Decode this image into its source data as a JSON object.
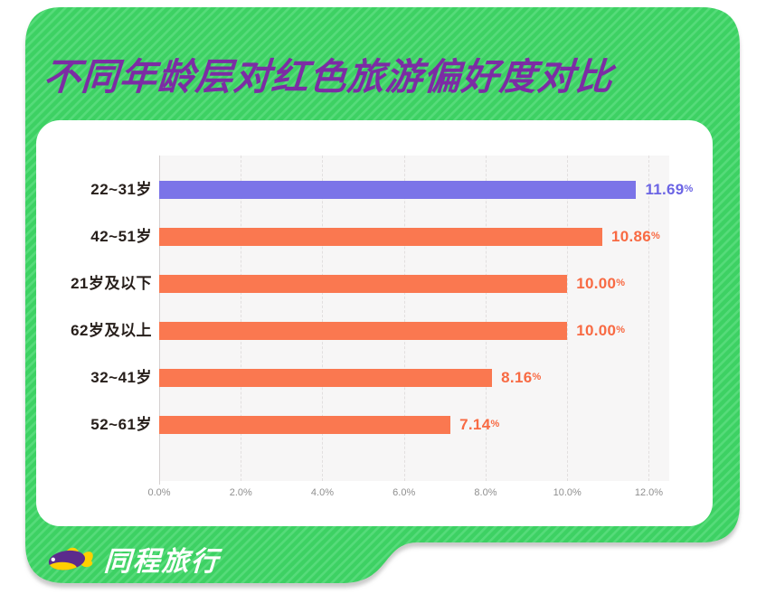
{
  "title": "不同年龄层对红色旅游偏好度对比",
  "brand": {
    "logo_text": "同程旅行"
  },
  "chart_data": {
    "type": "bar",
    "orientation": "horizontal",
    "title": "不同年龄层对红色旅游偏好度对比",
    "categories": [
      "22~31岁",
      "42~51岁",
      "21岁及以下",
      "62岁及以上",
      "32~41岁",
      "52~61岁"
    ],
    "values": [
      11.69,
      10.86,
      10.0,
      10.0,
      8.16,
      7.14
    ],
    "value_labels": [
      "11.69",
      "10.86",
      "10.00",
      "10.00",
      "8.16",
      "7.14"
    ],
    "unit": "%",
    "xlim": [
      0,
      12.5
    ],
    "x_ticks": [
      {
        "label": "0.0%",
        "value": 0
      },
      {
        "label": "2.0%",
        "value": 2
      },
      {
        "label": "4.0%",
        "value": 4
      },
      {
        "label": "6.0%",
        "value": 6
      },
      {
        "label": "8.0%",
        "value": 8
      },
      {
        "label": "10.0%",
        "value": 10
      },
      {
        "label": "12.0%",
        "value": 12
      }
    ],
    "grid": "vertical-dashed",
    "legend": "none"
  },
  "colors": {
    "green_base": "#3dd164",
    "green_stripe": "#57db7a",
    "title_purple": "#7c2ca4",
    "bar_colors": [
      "#7b74e8",
      "#fa7850",
      "#fa7850",
      "#fa7850",
      "#fa7850",
      "#fa7850"
    ],
    "value_colors": [
      "#6b64e4",
      "#f86a43",
      "#f86a43",
      "#f86a43",
      "#f86a43",
      "#f86a43"
    ],
    "plot_bg": "#f7f6f6",
    "label_color": "#261e1a",
    "tick_color": "#8f8f8f",
    "card_bg": "#ffffff",
    "logo_text_color": "#ffffff",
    "mascot_purple": "#5b2b8c",
    "mascot_yellow": "#ffd000"
  }
}
